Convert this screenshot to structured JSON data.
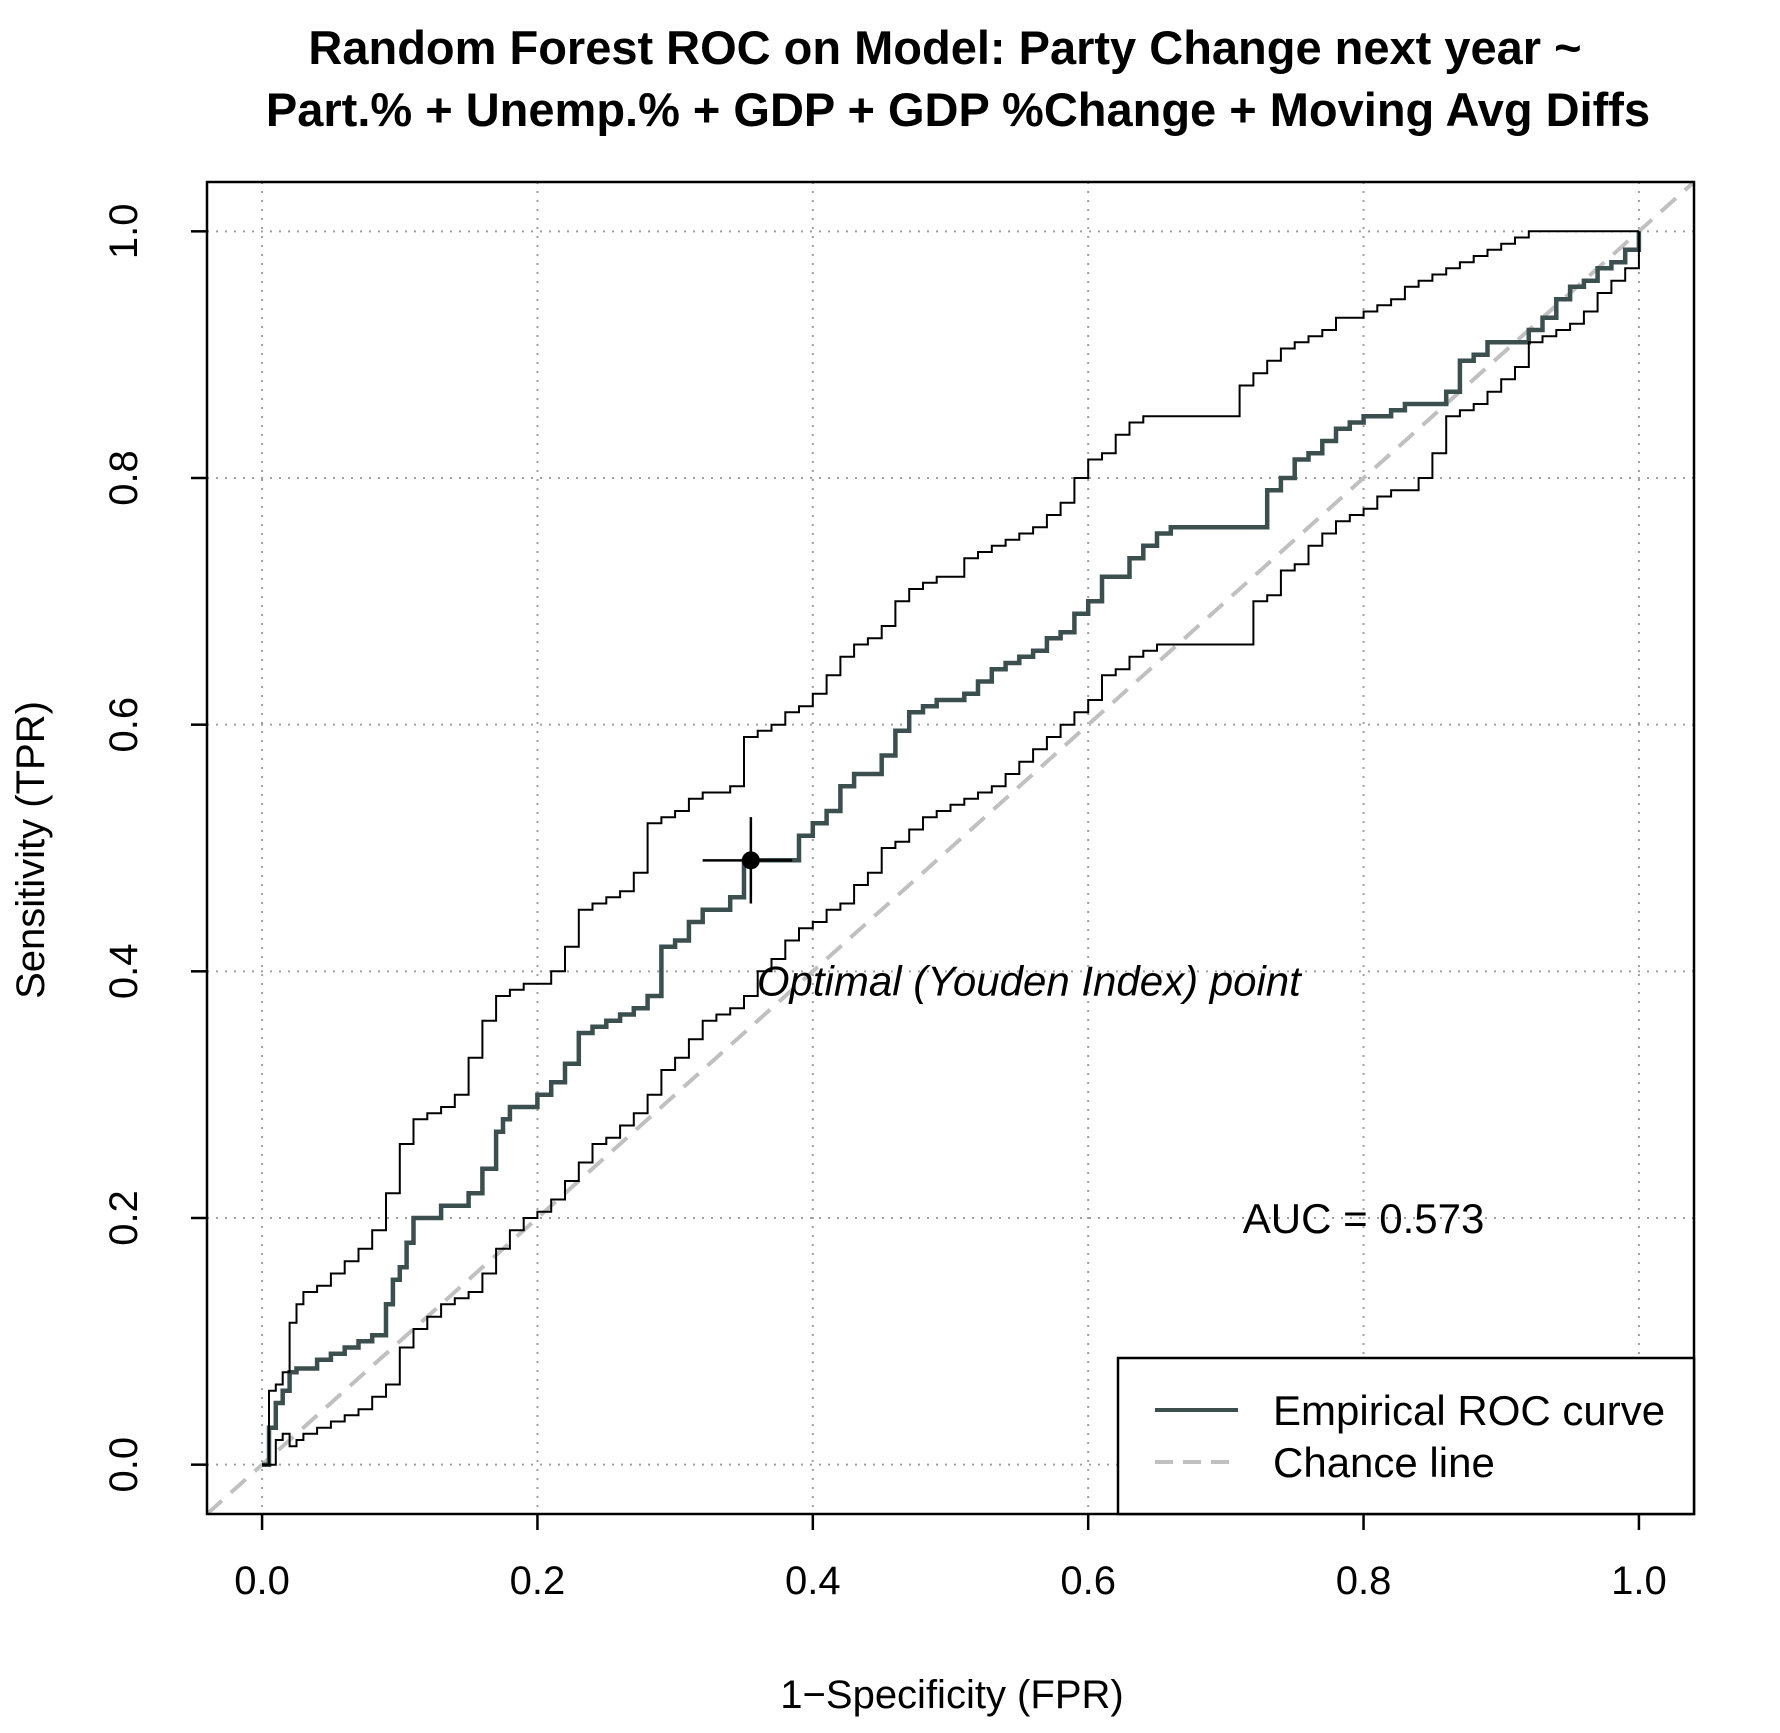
{
  "chart_data": {
    "type": "line",
    "title_lines": [
      "Random Forest ROC on Model: Party Change next year ~",
      "Part.% + Unemp.% + GDP + GDP %Change + Moving Avg Diffs"
    ],
    "xlabel": "1−Specificity (FPR)",
    "ylabel": "Sensitivity (TPR)",
    "xlim": [
      -0.04,
      1.04
    ],
    "ylim": [
      -0.04,
      1.04
    ],
    "xticks": [
      0.0,
      0.2,
      0.4,
      0.6,
      0.8,
      1.0
    ],
    "yticks": [
      0.0,
      0.2,
      0.4,
      0.6,
      0.8,
      1.0
    ],
    "xtick_labels": [
      "0.0",
      "0.2",
      "0.4",
      "0.6",
      "0.8",
      "1.0"
    ],
    "ytick_labels": [
      "0.0",
      "0.2",
      "0.4",
      "0.6",
      "0.8",
      "1.0"
    ],
    "grid": true,
    "legend_position": "bottom-right",
    "colors": {
      "roc": "#3b4f4f",
      "band": "#000000",
      "chance": "#c0c0c0",
      "grid": "#a0a0a0"
    },
    "series": [
      {
        "name": "Empirical ROC curve",
        "style": "step",
        "x": [
          0.0,
          0.005,
          0.01,
          0.015,
          0.02,
          0.025,
          0.03,
          0.04,
          0.05,
          0.06,
          0.07,
          0.08,
          0.09,
          0.095,
          0.1,
          0.105,
          0.11,
          0.115,
          0.12,
          0.13,
          0.14,
          0.15,
          0.16,
          0.17,
          0.175,
          0.18,
          0.19,
          0.2,
          0.21,
          0.22,
          0.23,
          0.24,
          0.25,
          0.26,
          0.27,
          0.28,
          0.29,
          0.3,
          0.31,
          0.32,
          0.33,
          0.34,
          0.35,
          0.36,
          0.37,
          0.38,
          0.39,
          0.4,
          0.41,
          0.42,
          0.43,
          0.44,
          0.45,
          0.46,
          0.47,
          0.48,
          0.49,
          0.5,
          0.51,
          0.52,
          0.53,
          0.54,
          0.55,
          0.56,
          0.57,
          0.58,
          0.59,
          0.6,
          0.61,
          0.62,
          0.63,
          0.64,
          0.65,
          0.66,
          0.67,
          0.68,
          0.69,
          0.7,
          0.71,
          0.72,
          0.73,
          0.74,
          0.75,
          0.76,
          0.77,
          0.78,
          0.79,
          0.8,
          0.81,
          0.82,
          0.83,
          0.84,
          0.85,
          0.86,
          0.87,
          0.88,
          0.89,
          0.9,
          0.91,
          0.92,
          0.93,
          0.94,
          0.95,
          0.96,
          0.97,
          0.98,
          0.99,
          1.0
        ],
        "y": [
          0.0,
          0.03,
          0.05,
          0.06,
          0.075,
          0.078,
          0.078,
          0.085,
          0.09,
          0.095,
          0.1,
          0.105,
          0.13,
          0.15,
          0.16,
          0.18,
          0.2,
          0.2,
          0.2,
          0.21,
          0.21,
          0.22,
          0.24,
          0.27,
          0.28,
          0.29,
          0.29,
          0.3,
          0.31,
          0.325,
          0.35,
          0.355,
          0.36,
          0.365,
          0.37,
          0.38,
          0.42,
          0.425,
          0.44,
          0.45,
          0.45,
          0.46,
          0.49,
          0.49,
          0.49,
          0.49,
          0.51,
          0.52,
          0.53,
          0.55,
          0.56,
          0.56,
          0.575,
          0.595,
          0.61,
          0.615,
          0.62,
          0.62,
          0.625,
          0.635,
          0.645,
          0.65,
          0.655,
          0.66,
          0.67,
          0.675,
          0.69,
          0.7,
          0.72,
          0.72,
          0.735,
          0.745,
          0.755,
          0.76,
          0.76,
          0.76,
          0.76,
          0.76,
          0.76,
          0.76,
          0.79,
          0.8,
          0.815,
          0.82,
          0.83,
          0.84,
          0.845,
          0.85,
          0.85,
          0.855,
          0.86,
          0.86,
          0.86,
          0.87,
          0.895,
          0.9,
          0.91,
          0.91,
          0.91,
          0.92,
          0.93,
          0.945,
          0.955,
          0.96,
          0.97,
          0.975,
          0.985,
          1.0
        ]
      },
      {
        "name": "CI upper",
        "style": "step",
        "x": [
          0.0,
          0.005,
          0.01,
          0.015,
          0.02,
          0.025,
          0.03,
          0.04,
          0.05,
          0.06,
          0.07,
          0.08,
          0.09,
          0.1,
          0.11,
          0.12,
          0.13,
          0.14,
          0.15,
          0.16,
          0.17,
          0.18,
          0.19,
          0.2,
          0.21,
          0.22,
          0.23,
          0.24,
          0.25,
          0.26,
          0.27,
          0.28,
          0.29,
          0.3,
          0.31,
          0.32,
          0.33,
          0.34,
          0.35,
          0.36,
          0.37,
          0.38,
          0.39,
          0.4,
          0.41,
          0.42,
          0.43,
          0.44,
          0.45,
          0.46,
          0.47,
          0.48,
          0.49,
          0.5,
          0.51,
          0.52,
          0.53,
          0.54,
          0.55,
          0.56,
          0.57,
          0.58,
          0.59,
          0.6,
          0.61,
          0.62,
          0.63,
          0.64,
          0.65,
          0.66,
          0.67,
          0.68,
          0.69,
          0.7,
          0.71,
          0.72,
          0.73,
          0.74,
          0.75,
          0.76,
          0.77,
          0.78,
          0.79,
          0.8,
          0.81,
          0.82,
          0.83,
          0.84,
          0.85,
          0.86,
          0.87,
          0.88,
          0.89,
          0.9,
          0.91,
          0.92,
          0.93,
          0.94,
          0.95,
          0.96,
          0.97,
          0.98,
          0.99,
          1.0
        ],
        "y": [
          0.0,
          0.06,
          0.065,
          0.075,
          0.115,
          0.13,
          0.14,
          0.145,
          0.155,
          0.165,
          0.175,
          0.19,
          0.22,
          0.26,
          0.28,
          0.285,
          0.29,
          0.3,
          0.33,
          0.36,
          0.38,
          0.385,
          0.39,
          0.39,
          0.4,
          0.42,
          0.45,
          0.455,
          0.46,
          0.465,
          0.48,
          0.52,
          0.525,
          0.53,
          0.54,
          0.545,
          0.545,
          0.55,
          0.59,
          0.595,
          0.6,
          0.61,
          0.615,
          0.625,
          0.64,
          0.655,
          0.665,
          0.67,
          0.68,
          0.7,
          0.71,
          0.715,
          0.72,
          0.72,
          0.735,
          0.74,
          0.745,
          0.75,
          0.755,
          0.76,
          0.77,
          0.78,
          0.8,
          0.815,
          0.82,
          0.835,
          0.845,
          0.85,
          0.85,
          0.85,
          0.85,
          0.85,
          0.85,
          0.85,
          0.875,
          0.885,
          0.895,
          0.905,
          0.91,
          0.915,
          0.92,
          0.93,
          0.93,
          0.935,
          0.94,
          0.945,
          0.955,
          0.96,
          0.965,
          0.97,
          0.975,
          0.98,
          0.985,
          0.99,
          0.995,
          1.0,
          1.0,
          1.0,
          1.0,
          1.0,
          1.0,
          1.0,
          1.0,
          1.0
        ]
      },
      {
        "name": "CI lower",
        "style": "step",
        "x": [
          0.0,
          0.01,
          0.015,
          0.02,
          0.025,
          0.03,
          0.04,
          0.05,
          0.06,
          0.07,
          0.08,
          0.09,
          0.1,
          0.11,
          0.12,
          0.13,
          0.14,
          0.15,
          0.16,
          0.17,
          0.18,
          0.19,
          0.2,
          0.21,
          0.22,
          0.23,
          0.24,
          0.25,
          0.26,
          0.27,
          0.28,
          0.29,
          0.3,
          0.31,
          0.32,
          0.33,
          0.34,
          0.35,
          0.36,
          0.37,
          0.38,
          0.39,
          0.4,
          0.41,
          0.42,
          0.43,
          0.44,
          0.45,
          0.46,
          0.47,
          0.48,
          0.49,
          0.5,
          0.51,
          0.52,
          0.53,
          0.54,
          0.55,
          0.56,
          0.57,
          0.58,
          0.59,
          0.6,
          0.61,
          0.62,
          0.63,
          0.64,
          0.65,
          0.66,
          0.67,
          0.68,
          0.69,
          0.7,
          0.71,
          0.72,
          0.73,
          0.74,
          0.75,
          0.76,
          0.77,
          0.78,
          0.79,
          0.8,
          0.81,
          0.82,
          0.83,
          0.84,
          0.85,
          0.86,
          0.87,
          0.88,
          0.89,
          0.9,
          0.91,
          0.92,
          0.93,
          0.94,
          0.95,
          0.96,
          0.97,
          0.98,
          0.99,
          1.0
        ],
        "y": [
          0.0,
          0.02,
          0.025,
          0.015,
          0.02,
          0.025,
          0.03,
          0.035,
          0.04,
          0.045,
          0.055,
          0.065,
          0.095,
          0.11,
          0.12,
          0.13,
          0.135,
          0.14,
          0.155,
          0.175,
          0.19,
          0.2,
          0.205,
          0.215,
          0.23,
          0.245,
          0.26,
          0.265,
          0.275,
          0.285,
          0.3,
          0.32,
          0.33,
          0.345,
          0.36,
          0.365,
          0.37,
          0.38,
          0.4,
          0.41,
          0.425,
          0.435,
          0.44,
          0.45,
          0.455,
          0.47,
          0.48,
          0.5,
          0.505,
          0.515,
          0.525,
          0.53,
          0.535,
          0.54,
          0.545,
          0.55,
          0.56,
          0.57,
          0.58,
          0.59,
          0.6,
          0.61,
          0.62,
          0.64,
          0.645,
          0.655,
          0.66,
          0.665,
          0.665,
          0.665,
          0.665,
          0.665,
          0.665,
          0.665,
          0.7,
          0.705,
          0.725,
          0.73,
          0.745,
          0.755,
          0.765,
          0.77,
          0.775,
          0.785,
          0.79,
          0.79,
          0.8,
          0.82,
          0.85,
          0.855,
          0.86,
          0.87,
          0.88,
          0.89,
          0.91,
          0.915,
          0.92,
          0.925,
          0.935,
          0.95,
          0.96,
          0.97,
          1.0
        ]
      },
      {
        "name": "Chance line",
        "style": "dashed",
        "x": [
          -0.04,
          1.04
        ],
        "y": [
          -0.04,
          1.04
        ]
      }
    ],
    "optimal_point": {
      "x": 0.355,
      "y": 0.49,
      "x_error": [
        0.32,
        0.385
      ],
      "y_error": [
        0.455,
        0.525
      ],
      "label": "Optimal (Youden Index) point"
    },
    "annotations": [
      {
        "text": "AUC = 0.573",
        "x": 0.8,
        "y": 0.2
      }
    ],
    "legend": {
      "entries": [
        {
          "label": "Empirical ROC curve",
          "style": "solid"
        },
        {
          "label": "Chance line",
          "style": "dashed"
        }
      ]
    }
  }
}
